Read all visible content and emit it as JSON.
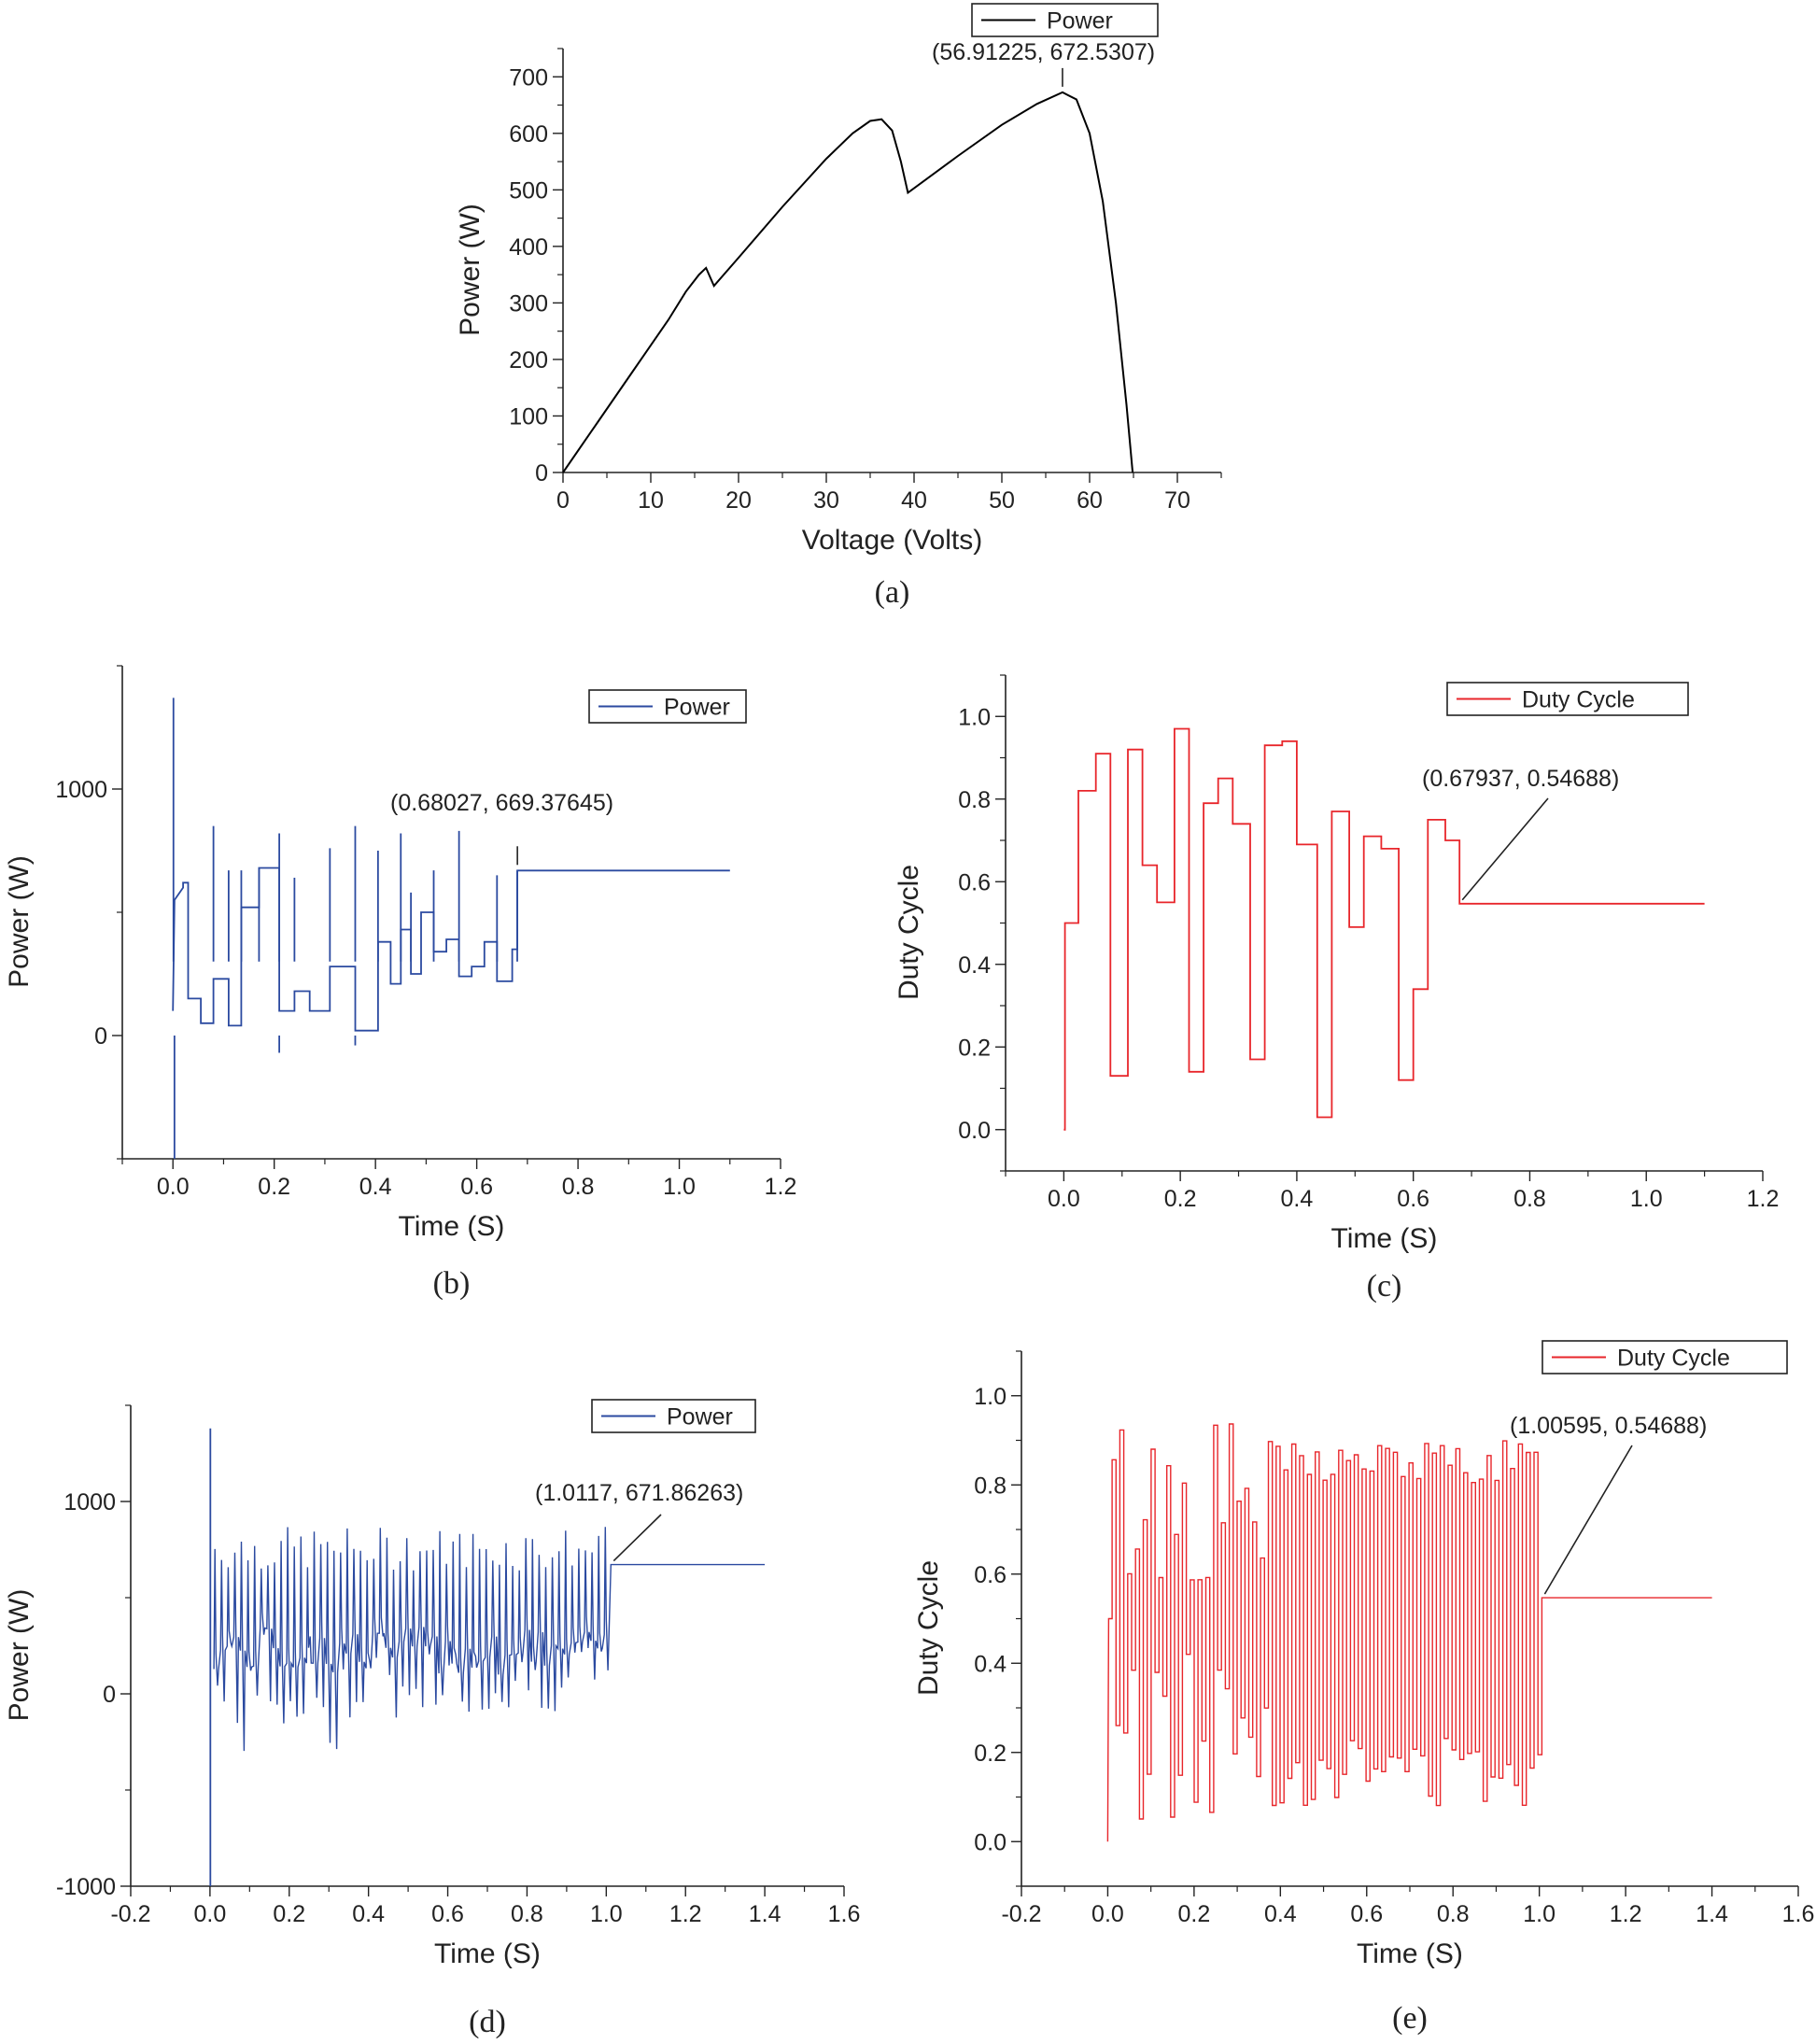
{
  "chart_data": [
    {
      "id": "a",
      "type": "line",
      "caption": "(a)",
      "xlabel": "Voltage (Volts)",
      "ylabel": "Power (W)",
      "xlim": [
        0,
        75
      ],
      "ylim": [
        0,
        750
      ],
      "xticks": [
        0,
        10,
        20,
        30,
        40,
        50,
        60,
        70
      ],
      "yticks": [
        0,
        100,
        200,
        300,
        400,
        500,
        600,
        700
      ],
      "legend": "top-center",
      "color": "#000000",
      "series": [
        {
          "name": "Power",
          "x": [
            0,
            4,
            8,
            12,
            14,
            15.5,
            16.3,
            17.2,
            20,
            25,
            30,
            33,
            35,
            36.3,
            37.5,
            38.5,
            39.3,
            45,
            50,
            54,
            56.91,
            58.5,
            60,
            61.5,
            63,
            64.2,
            64.9
          ],
          "y": [
            0,
            90,
            180,
            270,
            320,
            350,
            362,
            330,
            380,
            470,
            555,
            600,
            622,
            625,
            605,
            550,
            495,
            560,
            615,
            652,
            672.53,
            660,
            600,
            480,
            300,
            120,
            0
          ]
        }
      ],
      "annotation": {
        "label": "(56.91225, 672.5307)",
        "x": 56.91225,
        "y": 672.5307
      }
    },
    {
      "id": "b",
      "type": "line",
      "caption": "(b)",
      "xlabel": "Time (S)",
      "ylabel": "Power (W)",
      "xlim": [
        -0.1,
        1.2
      ],
      "ylim": [
        -500,
        1500
      ],
      "xticks": [
        0.0,
        0.2,
        0.4,
        0.6,
        0.8,
        1.0,
        1.2
      ],
      "yticks": [
        0,
        1000
      ],
      "legend": "top-right",
      "color": "#2b4aa0",
      "series": [
        {
          "name": "Power",
          "steps": [
            [
              0.02,
              620
            ],
            [
              0.03,
              150
            ],
            [
              0.055,
              50
            ],
            [
              0.08,
              230
            ],
            [
              0.11,
              40
            ],
            [
              0.135,
              520
            ],
            [
              0.17,
              680
            ],
            [
              0.21,
              100
            ],
            [
              0.24,
              180
            ],
            [
              0.27,
              100
            ],
            [
              0.31,
              280
            ],
            [
              0.36,
              20
            ],
            [
              0.405,
              380
            ],
            [
              0.43,
              210
            ],
            [
              0.45,
              430
            ],
            [
              0.47,
              250
            ],
            [
              0.49,
              500
            ],
            [
              0.515,
              340
            ],
            [
              0.54,
              390
            ],
            [
              0.565,
              240
            ],
            [
              0.59,
              280
            ],
            [
              0.615,
              380
            ],
            [
              0.64,
              220
            ],
            [
              0.67,
              350
            ],
            [
              0.68027,
              669.37645
            ],
            [
              1.1,
              669.37645
            ]
          ],
          "spikes": [
            [
              0.001,
              1370
            ],
            [
              0.003,
              -500
            ],
            [
              0.08,
              850
            ],
            [
              0.11,
              670
            ],
            [
              0.135,
              670
            ],
            [
              0.17,
              680
            ],
            [
              0.21,
              820
            ],
            [
              0.21,
              -70
            ],
            [
              0.24,
              640
            ],
            [
              0.31,
              760
            ],
            [
              0.36,
              850
            ],
            [
              0.36,
              -40
            ],
            [
              0.405,
              750
            ],
            [
              0.45,
              820
            ],
            [
              0.47,
              580
            ],
            [
              0.515,
              670
            ],
            [
              0.565,
              830
            ],
            [
              0.64,
              650
            ],
            [
              0.68,
              669
            ]
          ]
        }
      ],
      "annotation": {
        "label": "(0.68027, 669.37645)",
        "x": 0.68027,
        "y": 669.37645
      }
    },
    {
      "id": "c",
      "type": "line",
      "caption": "(c)",
      "xlabel": "Time (S)",
      "ylabel": "Duty Cycle",
      "xlim": [
        -0.1,
        1.2
      ],
      "ylim": [
        -0.1,
        1.1
      ],
      "xticks": [
        0.0,
        0.2,
        0.4,
        0.6,
        0.8,
        1.0,
        1.2
      ],
      "yticks": [
        0.0,
        0.2,
        0.4,
        0.6,
        0.8,
        1.0
      ],
      "legend": "top-right",
      "color": "#e8262b",
      "series": [
        {
          "name": "Duty Cycle",
          "t": [
            0,
            0.002,
            0.025,
            0.055,
            0.08,
            0.11,
            0.135,
            0.16,
            0.19,
            0.215,
            0.24,
            0.265,
            0.29,
            0.32,
            0.345,
            0.375,
            0.4,
            0.435,
            0.46,
            0.49,
            0.515,
            0.545,
            0.575,
            0.6,
            0.625,
            0.655,
            0.67937,
            1.1
          ],
          "d": [
            0,
            0.5,
            0.82,
            0.91,
            0.13,
            0.92,
            0.64,
            0.55,
            0.97,
            0.14,
            0.79,
            0.85,
            0.74,
            0.17,
            0.93,
            0.94,
            0.69,
            0.03,
            0.77,
            0.49,
            0.71,
            0.68,
            0.12,
            0.34,
            0.75,
            0.7,
            0.54688,
            0.54688
          ]
        }
      ],
      "annotation": {
        "label": "(0.67937, 0.54688)",
        "x": 0.67937,
        "y": 0.54688
      }
    },
    {
      "id": "d",
      "type": "line",
      "caption": "(d)",
      "xlabel": "Time (S)",
      "ylabel": "Power (W)",
      "xlim": [
        -0.2,
        1.6
      ],
      "ylim": [
        -1000,
        1500
      ],
      "xticks": [
        -0.2,
        0.0,
        0.2,
        0.4,
        0.6,
        0.8,
        1.0,
        1.2,
        1.4,
        1.6
      ],
      "yticks": [
        -1000,
        0,
        1000
      ],
      "legend": "top-right",
      "color": "#2b4aa0",
      "series": [
        {
          "name": "Power",
          "t_start": 0.01,
          "t_end": 1.0117,
          "periods": 60,
          "end_value": 671.86263,
          "t_final": 1.4
        }
      ],
      "annotation": {
        "label": "(1.0117, 671.86263)",
        "x": 1.0117,
        "y": 671.86263
      }
    },
    {
      "id": "e",
      "type": "line",
      "caption": "(e)",
      "xlabel": "Time (S)",
      "ylabel": "Duty Cycle",
      "xlim": [
        -0.2,
        1.6
      ],
      "ylim": [
        -0.1,
        1.1
      ],
      "xticks": [
        -0.2,
        0.0,
        0.2,
        0.4,
        0.6,
        0.8,
        1.0,
        1.2,
        1.4,
        1.6
      ],
      "yticks": [
        0.0,
        0.2,
        0.4,
        0.6,
        0.8,
        1.0
      ],
      "legend": "top-right",
      "color": "#e8262b",
      "series": [
        {
          "name": "Duty Cycle",
          "t_start": 0.01,
          "t_end": 1.00595,
          "periods": 55,
          "end_value": 0.54688,
          "t_final": 1.4
        }
      ],
      "annotation": {
        "label": "(1.00595, 0.54688)",
        "x": 1.00595,
        "y": 0.54688
      }
    }
  ]
}
